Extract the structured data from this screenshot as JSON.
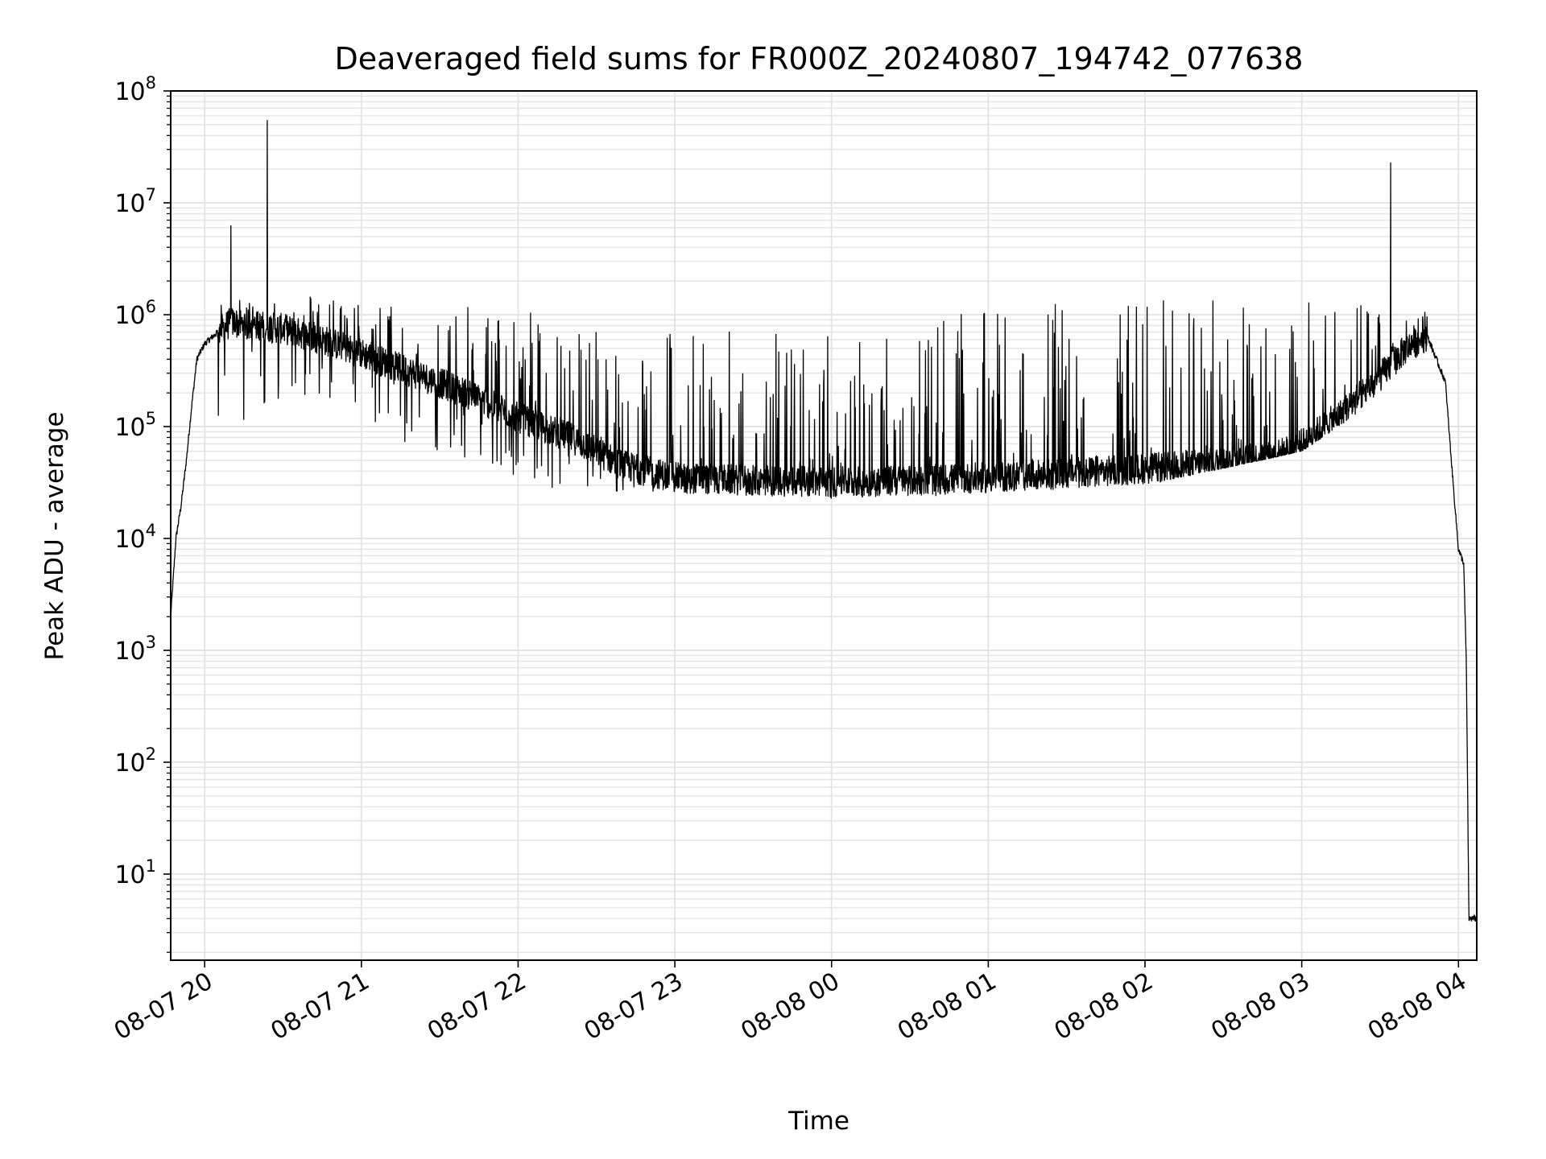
{
  "chart_data": {
    "type": "line",
    "title": "Deaveraged field sums for FR000Z_20240807_194742_077638",
    "xlabel": "Time",
    "ylabel": "Peak ADU - average",
    "yscale": "log",
    "ylim": [
      1.7,
      100000000
    ],
    "xlim": [
      "2024-08-07 19:47",
      "2024-08-08 04:07"
    ],
    "grid": true,
    "line_color": "#000000",
    "grid_color": "#e5e5e5",
    "x_ticks": [
      {
        "value": "2024-08-07 20:00",
        "label": "08-07 20"
      },
      {
        "value": "2024-08-07 21:00",
        "label": "08-07 21"
      },
      {
        "value": "2024-08-07 22:00",
        "label": "08-07 22"
      },
      {
        "value": "2024-08-07 23:00",
        "label": "08-07 23"
      },
      {
        "value": "2024-08-08 00:00",
        "label": "08-08 00"
      },
      {
        "value": "2024-08-08 01:00",
        "label": "08-08 01"
      },
      {
        "value": "2024-08-08 02:00",
        "label": "08-08 02"
      },
      {
        "value": "2024-08-08 03:00",
        "label": "08-08 03"
      },
      {
        "value": "2024-08-08 04:00",
        "label": "08-08 04"
      }
    ],
    "y_ticks": [
      {
        "value": 10,
        "base": "10",
        "exp": "1"
      },
      {
        "value": 100,
        "base": "10",
        "exp": "2"
      },
      {
        "value": 1000,
        "base": "10",
        "exp": "3"
      },
      {
        "value": 10000,
        "base": "10",
        "exp": "4"
      },
      {
        "value": 100000,
        "base": "10",
        "exp": "5"
      },
      {
        "value": 1000000,
        "base": "10",
        "exp": "6"
      },
      {
        "value": 10000000,
        "base": "10",
        "exp": "7"
      },
      {
        "value": 100000000,
        "base": "10",
        "exp": "8"
      }
    ],
    "series": [
      {
        "baseline": [
          [
            "2024-08-07 19:47",
            2000
          ],
          [
            "2024-08-07 19:49",
            10000
          ],
          [
            "2024-08-07 19:51",
            20000
          ],
          [
            "2024-08-07 19:53",
            50000
          ],
          [
            "2024-08-07 19:55",
            150000
          ],
          [
            "2024-08-07 19:57",
            400000
          ],
          [
            "2024-08-07 20:00",
            550000
          ],
          [
            "2024-08-07 20:05",
            700000
          ],
          [
            "2024-08-07 20:10",
            850000
          ],
          [
            "2024-08-07 20:20",
            800000
          ],
          [
            "2024-08-07 20:30",
            750000
          ],
          [
            "2024-08-07 20:45",
            600000
          ],
          [
            "2024-08-07 21:00",
            450000
          ],
          [
            "2024-08-07 21:20",
            300000
          ],
          [
            "2024-08-07 21:40",
            200000
          ],
          [
            "2024-08-07 22:00",
            120000
          ],
          [
            "2024-08-07 22:20",
            80000
          ],
          [
            "2024-08-07 22:40",
            45000
          ],
          [
            "2024-08-07 23:00",
            35000
          ],
          [
            "2024-08-07 23:30",
            33000
          ],
          [
            "2024-08-08 00:00",
            32000
          ],
          [
            "2024-08-08 00:30",
            33000
          ],
          [
            "2024-08-08 01:00",
            35000
          ],
          [
            "2024-08-08 01:30",
            38000
          ],
          [
            "2024-08-08 02:00",
            42000
          ],
          [
            "2024-08-08 02:30",
            48000
          ],
          [
            "2024-08-08 02:50",
            55000
          ],
          [
            "2024-08-08 03:00",
            70000
          ],
          [
            "2024-08-08 03:15",
            130000
          ],
          [
            "2024-08-08 03:30",
            280000
          ],
          [
            "2024-08-08 03:40",
            500000
          ],
          [
            "2024-08-08 03:48",
            650000
          ],
          [
            "2024-08-08 03:55",
            250000
          ],
          [
            "2024-08-08 03:58",
            30000
          ],
          [
            "2024-08-08 04:00",
            8000
          ],
          [
            "2024-08-08 04:02",
            6000
          ],
          [
            "2024-08-08 04:03",
            800
          ],
          [
            "2024-08-08 04:04",
            4
          ],
          [
            "2024-08-08 04:07",
            4
          ]
        ],
        "noise_envelope": [
          [
            "2024-08-07 20:05",
            100000,
            1300000
          ],
          [
            "2024-08-07 20:45",
            150000,
            1600000
          ],
          [
            "2024-08-07 21:00",
            60000,
            1300000
          ],
          [
            "2024-08-07 21:30",
            50000,
            1200000
          ],
          [
            "2024-08-07 22:00",
            30000,
            1200000
          ],
          [
            "2024-08-07 22:30",
            25000,
            900000
          ],
          [
            "2024-08-07 23:00",
            25000,
            800000
          ],
          [
            "2024-08-08 00:00",
            22000,
            700000
          ],
          [
            "2024-08-08 01:00",
            25000,
            1100000
          ],
          [
            "2024-08-08 02:00",
            30000,
            1500000
          ],
          [
            "2024-08-08 03:00",
            60000,
            1500000
          ],
          [
            "2024-08-08 03:48",
            350000,
            1100000
          ]
        ],
        "spikes": [
          [
            "2024-08-07 20:10",
            6300000
          ],
          [
            "2024-08-07 20:24",
            55000000
          ],
          [
            "2024-08-08 03:34",
            23000000
          ]
        ]
      }
    ]
  }
}
